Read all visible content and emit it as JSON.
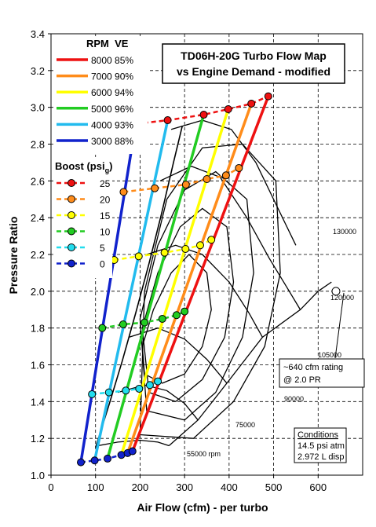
{
  "chart_data": {
    "type": "line",
    "title": [
      "TD06H-20G Turbo Flow Map",
      "vs Engine Demand - modified"
    ],
    "xlabel": "Air Flow (cfm) - per turbo",
    "ylabel": "Pressure Ratio",
    "xlim": [
      0,
      700
    ],
    "ylim": [
      1.0,
      3.4
    ],
    "xticks": [
      0,
      100,
      200,
      300,
      400,
      500,
      600
    ],
    "yticks": [
      1.0,
      1.2,
      1.4,
      1.6,
      1.8,
      2.0,
      2.2,
      2.4,
      2.6,
      2.8,
      3.0,
      3.2,
      3.4
    ],
    "xtick_labels": [
      "0",
      "100",
      "200",
      "300",
      "400",
      "500",
      "600"
    ],
    "ytick_labels": [
      "1.0",
      "1.2",
      "1.4",
      "1.6",
      "1.8",
      "2.0",
      "2.2",
      "2.4",
      "2.6",
      "2.8",
      "3.0",
      "3.2",
      "3.4"
    ],
    "grid": true,
    "rpm_legend_header": "RPM  VE",
    "boost_legend_header": "Boost (psi",
    "boost_legend_sub": "g",
    "boost_legend_close": ")",
    "rpm_series": [
      {
        "label": "8000  85%",
        "color": "#ee1111",
        "points": [
          [
            183,
            1.13
          ],
          [
            488,
            3.06
          ]
        ]
      },
      {
        "label": "7000  90%",
        "color": "#ff8c1a",
        "points": [
          [
            172,
            1.12
          ],
          [
            450,
            3.02
          ]
        ]
      },
      {
        "label": "6000  94%",
        "color": "#ffff00",
        "points": [
          [
            158,
            1.11
          ],
          [
            398,
            2.99
          ]
        ]
      },
      {
        "label": "5000  96%",
        "color": "#22cc22",
        "points": [
          [
            127,
            1.09
          ],
          [
            343,
            2.96
          ]
        ]
      },
      {
        "label": "4000  93%",
        "color": "#22bbee",
        "points": [
          [
            98,
            1.08
          ],
          [
            262,
            2.93
          ]
        ]
      },
      {
        "label": "3000  88%",
        "color": "#1122cc",
        "points": [
          [
            67,
            1.07
          ],
          [
            190,
            2.91
          ]
        ]
      }
    ],
    "boost_series": [
      {
        "label": "25",
        "color": "#ee1111",
        "points": [
          [
            190,
            2.91
          ],
          [
            262,
            2.93
          ],
          [
            343,
            2.96
          ],
          [
            398,
            2.99
          ],
          [
            450,
            3.02
          ],
          [
            488,
            3.06
          ]
        ]
      },
      {
        "label": "20",
        "color": "#ff8c1a",
        "points": [
          [
            163,
            2.54
          ],
          [
            233,
            2.56
          ],
          [
            303,
            2.58
          ],
          [
            350,
            2.61
          ],
          [
            393,
            2.63
          ],
          [
            422,
            2.67
          ]
        ]
      },
      {
        "label": "15",
        "color": "#ffff00",
        "points": [
          [
            142,
            2.17
          ],
          [
            197,
            2.19
          ],
          [
            255,
            2.21
          ],
          [
            302,
            2.23
          ],
          [
            335,
            2.25
          ],
          [
            360,
            2.28
          ]
        ]
      },
      {
        "label": "10",
        "color": "#22cc22",
        "points": [
          [
            115,
            1.8
          ],
          [
            162,
            1.82
          ],
          [
            210,
            1.83
          ],
          [
            250,
            1.85
          ],
          [
            282,
            1.87
          ],
          [
            300,
            1.89
          ]
        ]
      },
      {
        "label": "5",
        "color": "#22ddee",
        "points": [
          [
            92,
            1.44
          ],
          [
            130,
            1.45
          ],
          [
            168,
            1.46
          ],
          [
            198,
            1.47
          ],
          [
            222,
            1.49
          ],
          [
            240,
            1.51
          ]
        ]
      },
      {
        "label": "0",
        "color": "#1122cc",
        "points": [
          [
            67,
            1.07
          ],
          [
            98,
            1.08
          ],
          [
            127,
            1.09
          ],
          [
            158,
            1.11
          ],
          [
            172,
            1.12
          ],
          [
            183,
            1.13
          ]
        ]
      }
    ],
    "compressor_map": {
      "speed_lines": [
        {
          "label": "55000 rpm",
          "points": [
            [
              105,
              1.16
            ],
            [
              150,
              1.18
            ],
            [
              200,
              1.19
            ],
            [
              240,
              1.18
            ],
            [
              265,
              1.16
            ]
          ]
        },
        {
          "label": "75000",
          "points": [
            [
              150,
              1.45
            ],
            [
              210,
              1.49
            ],
            [
              260,
              1.46
            ],
            [
              300,
              1.39
            ],
            [
              330,
              1.3
            ]
          ]
        },
        {
          "label": "90000",
          "points": [
            [
              175,
              1.75
            ],
            [
              240,
              1.8
            ],
            [
              300,
              1.74
            ],
            [
              350,
              1.63
            ],
            [
              395,
              1.5
            ]
          ]
        },
        {
          "label": "105000",
          "points": [
            [
              215,
              2.2
            ],
            [
              280,
              2.25
            ],
            [
              340,
              2.2
            ],
            [
              400,
              2.05
            ],
            [
              445,
              1.88
            ],
            [
              475,
              1.75
            ]
          ]
        },
        {
          "label": "120000",
          "points": [
            [
              245,
              2.6
            ],
            [
              315,
              2.68
            ],
            [
              380,
              2.62
            ],
            [
              440,
              2.4
            ],
            [
              490,
              2.18
            ],
            [
              530,
              2.02
            ],
            [
              560,
              1.9
            ]
          ]
        },
        {
          "label": "130000",
          "points": [
            [
              270,
              2.88
            ],
            [
              340,
              2.93
            ],
            [
              405,
              2.88
            ],
            [
              460,
              2.7
            ],
            [
              510,
              2.45
            ],
            [
              550,
              2.25
            ]
          ]
        }
      ],
      "surge_line": [
        [
          100,
          1.15
        ],
        [
          130,
          1.38
        ],
        [
          160,
          1.62
        ],
        [
          190,
          1.88
        ],
        [
          220,
          2.15
        ],
        [
          248,
          2.42
        ],
        [
          275,
          2.7
        ],
        [
          295,
          2.9
        ]
      ],
      "choke_line": [
        [
          265,
          1.16
        ],
        [
          330,
          1.3
        ],
        [
          395,
          1.5
        ],
        [
          475,
          1.75
        ],
        [
          560,
          1.9
        ],
        [
          600,
          2.0
        ],
        [
          630,
          2.05
        ]
      ],
      "efficiency_islands": [
        [
          [
            210,
            1.55
          ],
          [
            250,
            1.5
          ],
          [
            300,
            1.55
          ],
          [
            340,
            1.7
          ],
          [
            360,
            1.9
          ],
          [
            350,
            2.1
          ],
          [
            310,
            2.2
          ],
          [
            270,
            2.1
          ],
          [
            230,
            1.9
          ],
          [
            205,
            1.7
          ]
        ],
        [
          [
            220,
            1.45
          ],
          [
            280,
            1.4
          ],
          [
            340,
            1.52
          ],
          [
            390,
            1.75
          ],
          [
            410,
            2.05
          ],
          [
            395,
            2.35
          ],
          [
            340,
            2.45
          ],
          [
            290,
            2.35
          ],
          [
            240,
            2.1
          ],
          [
            205,
            1.8
          ]
        ],
        [
          [
            215,
            1.35
          ],
          [
            300,
            1.3
          ],
          [
            370,
            1.45
          ],
          [
            430,
            1.75
          ],
          [
            455,
            2.1
          ],
          [
            440,
            2.5
          ],
          [
            370,
            2.65
          ],
          [
            300,
            2.55
          ],
          [
            240,
            2.25
          ],
          [
            200,
            1.85
          ]
        ],
        [
          [
            200,
            1.22
          ],
          [
            320,
            1.2
          ],
          [
            410,
            1.4
          ],
          [
            480,
            1.7
          ],
          [
            515,
            2.1
          ],
          [
            505,
            2.6
          ],
          [
            430,
            2.8
          ],
          [
            340,
            2.78
          ],
          [
            260,
            2.5
          ],
          [
            210,
            2.0
          ]
        ]
      ]
    },
    "map_labels": {
      "s55000": "55000 rpm",
      "s75000": "75000",
      "s90000": "90000",
      "s105000": "105000",
      "s120000": "120000",
      "s130000": "130000"
    },
    "rating_point": {
      "x": 640,
      "y": 2.0,
      "text_line1": "~640 cfm rating",
      "text_line2": "@ 2.0 PR"
    },
    "conditions": {
      "title": "Conditions",
      "line1": "14.5 psi atm",
      "line2": "2.972 L disp"
    }
  }
}
